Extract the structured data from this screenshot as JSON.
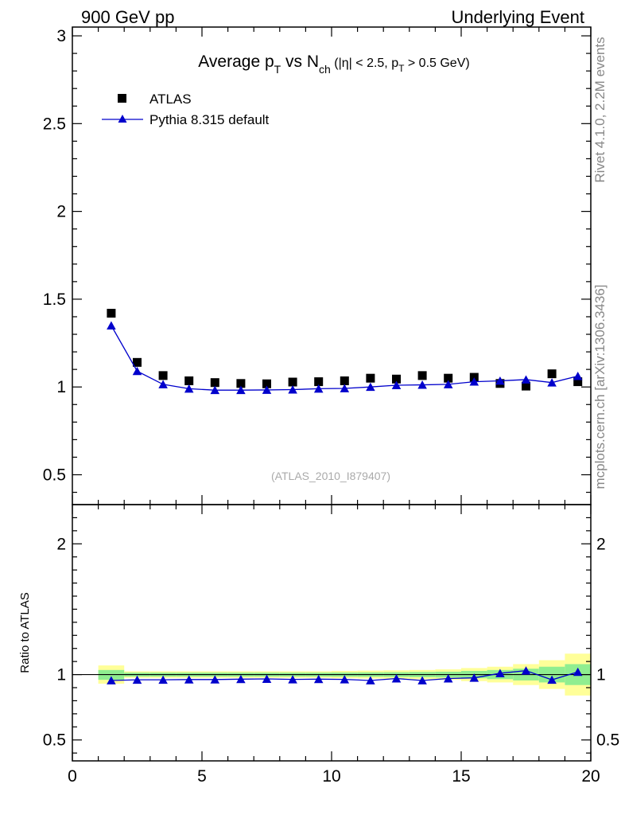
{
  "header": {
    "left": "900 GeV pp",
    "right": "Underlying Event"
  },
  "side_labels": {
    "rivet": "Rivet 4.1.0,  2.2M events",
    "mcplots": "mcplots.cern.ch [arXiv:1306.3436]"
  },
  "chart_data": [
    {
      "type": "scatter",
      "title": {
        "prefix": "Average p",
        "sub1": "T",
        "mid": " vs N",
        "sub2": "ch",
        "cut_a": " (|η| < 2.5, p",
        "sub3": "T",
        "cut_b": " > 0.5 GeV)"
      },
      "analysis_id": "(ATLAS_2010_I879407)",
      "xlim": [
        0,
        20
      ],
      "ylim": [
        0.33,
        3.05
      ],
      "yticks": [
        0.5,
        1,
        1.5,
        2,
        2.5,
        3
      ],
      "ytick_labels": [
        "0.5",
        "1",
        "1.5",
        "2",
        "2.5",
        "3"
      ],
      "legend_position": "top-left",
      "series": [
        {
          "name": "ATLAS",
          "marker": "square",
          "color": "#000000",
          "x": [
            1.5,
            2.5,
            3.5,
            4.5,
            5.5,
            6.5,
            7.5,
            8.5,
            9.5,
            10.5,
            11.5,
            12.5,
            13.5,
            14.5,
            15.5,
            16.5,
            17.5,
            18.5,
            19.5
          ],
          "y": [
            1.42,
            1.14,
            1.065,
            1.035,
            1.025,
            1.02,
            1.018,
            1.028,
            1.03,
            1.035,
            1.05,
            1.045,
            1.065,
            1.05,
            1.055,
            1.02,
            1.005,
            1.075,
            1.03
          ]
        },
        {
          "name": "Pythia 8.315 default",
          "marker": "triangle",
          "color": "#0000cc",
          "x": [
            1.5,
            2.5,
            3.5,
            4.5,
            5.5,
            6.5,
            7.5,
            8.5,
            9.5,
            10.5,
            11.5,
            12.5,
            13.5,
            14.5,
            15.5,
            16.5,
            17.5,
            18.5,
            19.5
          ],
          "y": [
            1.35,
            1.09,
            1.015,
            0.99,
            0.982,
            0.982,
            0.983,
            0.985,
            0.99,
            0.992,
            1.0,
            1.01,
            1.012,
            1.015,
            1.03,
            1.035,
            1.042,
            1.025,
            1.062
          ]
        }
      ]
    },
    {
      "type": "scatter",
      "ylabel": "Ratio to ATLAS",
      "xlabel": "",
      "xlim": [
        0,
        20
      ],
      "ylim": [
        0.34,
        2.3
      ],
      "xticks": [
        0,
        5,
        10,
        15,
        20
      ],
      "xtick_labels": [
        "0",
        "5",
        "10",
        "15",
        "20"
      ],
      "yticks": [
        0.5,
        1,
        2
      ],
      "ytick_labels": [
        "0.5",
        "1",
        "2"
      ],
      "reference_line": 1,
      "band_colors": {
        "inner": "#90ee90",
        "outer": "#ffff99"
      },
      "bands": [
        {
          "x0": 1,
          "x1": 2,
          "lo2": 0.93,
          "hi2": 1.07,
          "lo1": 0.96,
          "hi1": 1.035
        },
        {
          "x0": 2,
          "x1": 3,
          "lo2": 0.975,
          "hi2": 1.025,
          "lo1": 0.985,
          "hi1": 1.015
        },
        {
          "x0": 3,
          "x1": 4,
          "lo2": 0.975,
          "hi2": 1.025,
          "lo1": 0.985,
          "hi1": 1.015
        },
        {
          "x0": 4,
          "x1": 5,
          "lo2": 0.975,
          "hi2": 1.025,
          "lo1": 0.985,
          "hi1": 1.015
        },
        {
          "x0": 5,
          "x1": 6,
          "lo2": 0.975,
          "hi2": 1.025,
          "lo1": 0.985,
          "hi1": 1.015
        },
        {
          "x0": 6,
          "x1": 7,
          "lo2": 0.975,
          "hi2": 1.025,
          "lo1": 0.985,
          "hi1": 1.015
        },
        {
          "x0": 7,
          "x1": 8,
          "lo2": 0.975,
          "hi2": 1.025,
          "lo1": 0.985,
          "hi1": 1.015
        },
        {
          "x0": 8,
          "x1": 9,
          "lo2": 0.975,
          "hi2": 1.025,
          "lo1": 0.985,
          "hi1": 1.015
        },
        {
          "x0": 9,
          "x1": 10,
          "lo2": 0.975,
          "hi2": 1.025,
          "lo1": 0.985,
          "hi1": 1.015
        },
        {
          "x0": 10,
          "x1": 11,
          "lo2": 0.972,
          "hi2": 1.028,
          "lo1": 0.984,
          "hi1": 1.016
        },
        {
          "x0": 11,
          "x1": 12,
          "lo2": 0.97,
          "hi2": 1.03,
          "lo1": 0.983,
          "hi1": 1.017
        },
        {
          "x0": 12,
          "x1": 13,
          "lo2": 0.968,
          "hi2": 1.032,
          "lo1": 0.982,
          "hi1": 1.018
        },
        {
          "x0": 13,
          "x1": 14,
          "lo2": 0.965,
          "hi2": 1.035,
          "lo1": 0.98,
          "hi1": 1.02
        },
        {
          "x0": 14,
          "x1": 15,
          "lo2": 0.96,
          "hi2": 1.04,
          "lo1": 0.978,
          "hi1": 1.022
        },
        {
          "x0": 15,
          "x1": 16,
          "lo2": 0.95,
          "hi2": 1.05,
          "lo1": 0.972,
          "hi1": 1.028
        },
        {
          "x0": 16,
          "x1": 17,
          "lo2": 0.94,
          "hi2": 1.06,
          "lo1": 0.965,
          "hi1": 1.035
        },
        {
          "x0": 17,
          "x1": 18,
          "lo2": 0.92,
          "hi2": 1.08,
          "lo1": 0.955,
          "hi1": 1.045
        },
        {
          "x0": 18,
          "x1": 19,
          "lo2": 0.89,
          "hi2": 1.11,
          "lo1": 0.94,
          "hi1": 1.06
        },
        {
          "x0": 19,
          "x1": 20,
          "lo2": 0.84,
          "hi2": 1.16,
          "lo1": 0.92,
          "hi1": 1.08
        }
      ],
      "series": [
        {
          "name": "Pythia 8.315 default / ATLAS",
          "marker": "triangle",
          "color": "#0000cc",
          "x": [
            1.5,
            2.5,
            3.5,
            4.5,
            5.5,
            6.5,
            7.5,
            8.5,
            9.5,
            10.5,
            11.5,
            12.5,
            13.5,
            14.5,
            15.5,
            16.5,
            17.5,
            18.5,
            19.5
          ],
          "y": [
            0.955,
            0.96,
            0.96,
            0.962,
            0.962,
            0.965,
            0.967,
            0.963,
            0.965,
            0.963,
            0.955,
            0.97,
            0.955,
            0.97,
            0.975,
            1.01,
            1.03,
            0.96,
            1.02
          ]
        }
      ]
    }
  ]
}
